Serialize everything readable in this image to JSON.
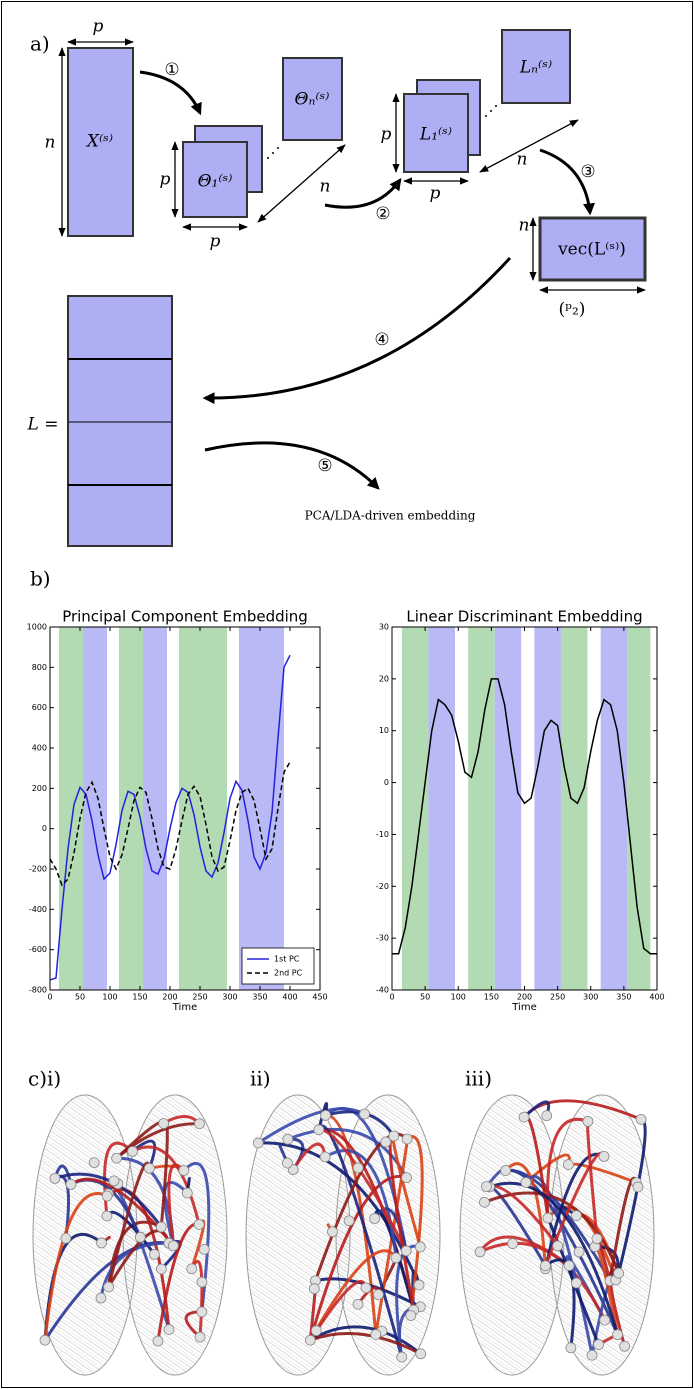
{
  "diagram": {
    "label": "a)",
    "matrices": [
      "X⁽ˢ⁾",
      "Θ₁⁽ˢ⁾",
      "Θₙ⁽ˢ⁾",
      "L₁⁽ˢ⁾",
      "Lₙ⁽ˢ⁾",
      "vec(L⁽ˢ⁾)"
    ],
    "dimensions": [
      "p",
      "n",
      "p",
      "p",
      "n",
      "p",
      "p",
      "n",
      "n",
      "(ᵖ₂)"
    ],
    "steps": [
      "①",
      "②",
      "③",
      "④",
      "⑤"
    ],
    "stack_label": "L =",
    "output": "PCA/LDA-driven embedding"
  },
  "panel_b_label": "b)",
  "chart_data": [
    {
      "type": "line",
      "title": "Principal Component Embedding",
      "x_label": "Time",
      "x": [
        0,
        10,
        20,
        30,
        40,
        50,
        60,
        70,
        80,
        90,
        100,
        110,
        120,
        130,
        140,
        150,
        160,
        170,
        180,
        190,
        200,
        210,
        220,
        230,
        240,
        250,
        260,
        270,
        280,
        290,
        300,
        310,
        320,
        330,
        340,
        350,
        360,
        370,
        380,
        390,
        400
      ],
      "series": [
        {
          "name": "1st PC",
          "color": "#2222dd",
          "style": "solid",
          "values": [
            -750,
            -740,
            -400,
            -100,
            120,
            205,
            170,
            40,
            -130,
            -250,
            -220,
            -80,
            90,
            185,
            170,
            60,
            -100,
            -210,
            -225,
            -150,
            0,
            130,
            200,
            180,
            70,
            -90,
            -210,
            -240,
            -170,
            -20,
            150,
            235,
            190,
            40,
            -140,
            -200,
            -120,
            80,
            450,
            800,
            860
          ]
        },
        {
          "name": "2nd PC",
          "color": "#000000",
          "style": "dashed",
          "values": [
            -150,
            -200,
            -280,
            -250,
            -120,
            50,
            180,
            230,
            150,
            0,
            -140,
            -200,
            -130,
            0,
            140,
            205,
            180,
            50,
            -100,
            -190,
            -200,
            -100,
            40,
            170,
            210,
            160,
            20,
            -140,
            -210,
            -190,
            -60,
            90,
            180,
            200,
            140,
            0,
            -150,
            -100,
            100,
            280,
            330
          ]
        }
      ],
      "bands": [
        {
          "start": 15,
          "end": 55,
          "color": "#b3dbb3"
        },
        {
          "start": 55,
          "end": 95,
          "color": "#b9b9f5"
        },
        {
          "start": 115,
          "end": 155,
          "color": "#b3dbb3"
        },
        {
          "start": 155,
          "end": 195,
          "color": "#b9b9f5"
        },
        {
          "start": 215,
          "end": 295,
          "color": "#b3dbb3"
        },
        {
          "start": 315,
          "end": 390,
          "color": "#b9b9f5"
        }
      ],
      "xlim": [
        0,
        450
      ],
      "xticks": [
        0,
        50,
        100,
        150,
        200,
        250,
        300,
        350,
        400,
        450
      ],
      "ylim": [
        -800,
        1000
      ],
      "yticks": [
        -800,
        -600,
        -400,
        -200,
        0,
        200,
        400,
        600,
        800,
        1000
      ],
      "legend": "lower right"
    },
    {
      "type": "line",
      "title": "Linear Discriminant Embedding",
      "x_label": "Time",
      "x": [
        0,
        10,
        20,
        30,
        40,
        50,
        60,
        70,
        80,
        90,
        100,
        110,
        120,
        130,
        140,
        150,
        160,
        170,
        180,
        190,
        200,
        210,
        220,
        230,
        240,
        250,
        260,
        270,
        280,
        290,
        300,
        310,
        320,
        330,
        340,
        350,
        360,
        370,
        380,
        390,
        400
      ],
      "series": [
        {
          "color": "#000000",
          "style": "solid",
          "values": [
            -33,
            -33,
            -28,
            -20,
            -10,
            0,
            10,
            16,
            15,
            13,
            8,
            2,
            1,
            6,
            14,
            20,
            20,
            15,
            6,
            -2,
            -4,
            -3,
            3,
            10,
            12,
            11,
            3,
            -3,
            -4,
            -1,
            6,
            12,
            16,
            15,
            10,
            0,
            -12,
            -24,
            -32,
            -33,
            -33
          ]
        }
      ],
      "bands": [
        {
          "start": 15,
          "end": 55,
          "color": "#b3dbb3"
        },
        {
          "start": 55,
          "end": 95,
          "color": "#b9b9f5"
        },
        {
          "start": 115,
          "end": 155,
          "color": "#b3dbb3"
        },
        {
          "start": 155,
          "end": 195,
          "color": "#b9b9f5"
        },
        {
          "start": 215,
          "end": 255,
          "color": "#b9b9f5"
        },
        {
          "start": 255,
          "end": 295,
          "color": "#b3dbb3"
        },
        {
          "start": 315,
          "end": 355,
          "color": "#b9b9f5"
        },
        {
          "start": 355,
          "end": 390,
          "color": "#b3dbb3"
        }
      ],
      "xlim": [
        0,
        400
      ],
      "xticks": [
        0,
        50,
        100,
        150,
        200,
        250,
        300,
        350,
        400
      ],
      "ylim": [
        -40,
        30
      ],
      "yticks": [
        -40,
        -30,
        -20,
        -10,
        0,
        10,
        20,
        30
      ]
    }
  ],
  "brains": {
    "labels": [
      "c)i)",
      "ii)",
      "iii)"
    ]
  }
}
